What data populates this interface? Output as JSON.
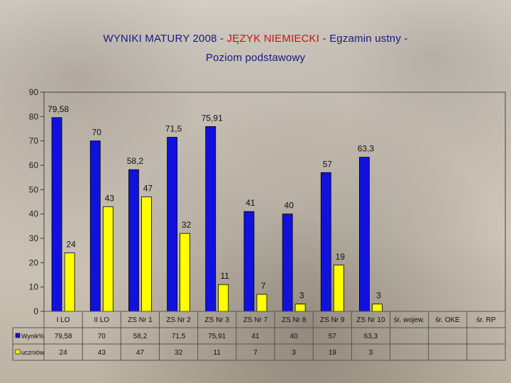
{
  "title": {
    "line1_before": "WYNIKI MATURY 2008 - ",
    "line1_highlight": "JĘZYK NIEMIECKI",
    "line1_after": " - Egzamin ustny -",
    "line2": "Poziom   podstawowy"
  },
  "colors": {
    "series1": "#1111dd",
    "series2": "#ffff00",
    "title": "#1a1a7a",
    "title_highlight": "#cc1111"
  },
  "chart_data": {
    "type": "bar",
    "categories": [
      "I LO",
      "II LO",
      "ZS Nr 1",
      "ZS Nr 2",
      "ZS Nr 3",
      "ZS Nr 7",
      "ZS Nr 8",
      "ZS Nr 9",
      "ZS Nr 10",
      "śr. wojew.",
      "śr. OKE",
      "śr. RP"
    ],
    "series": [
      {
        "name": "Wynik%",
        "values": [
          79.58,
          70,
          58.2,
          71.5,
          75.91,
          41,
          40,
          57,
          63.3,
          null,
          null,
          null
        ],
        "labels": [
          "79,58",
          "70",
          "58,2",
          "71,5",
          "75,91",
          "41",
          "40",
          "57",
          "63,3",
          "",
          "",
          ""
        ]
      },
      {
        "name": "uczniów",
        "values": [
          24,
          43,
          47,
          32,
          11,
          7,
          3,
          19,
          3,
          null,
          null,
          null
        ],
        "labels": [
          "24",
          "43",
          "47",
          "32",
          "11",
          "7",
          "3",
          "19",
          "3",
          "",
          "",
          ""
        ]
      }
    ],
    "y_ticks": [
      0,
      10,
      20,
      30,
      40,
      50,
      60,
      70,
      80,
      90
    ],
    "ylim": [
      0,
      90
    ],
    "data_table": true,
    "legend": "in data table"
  }
}
